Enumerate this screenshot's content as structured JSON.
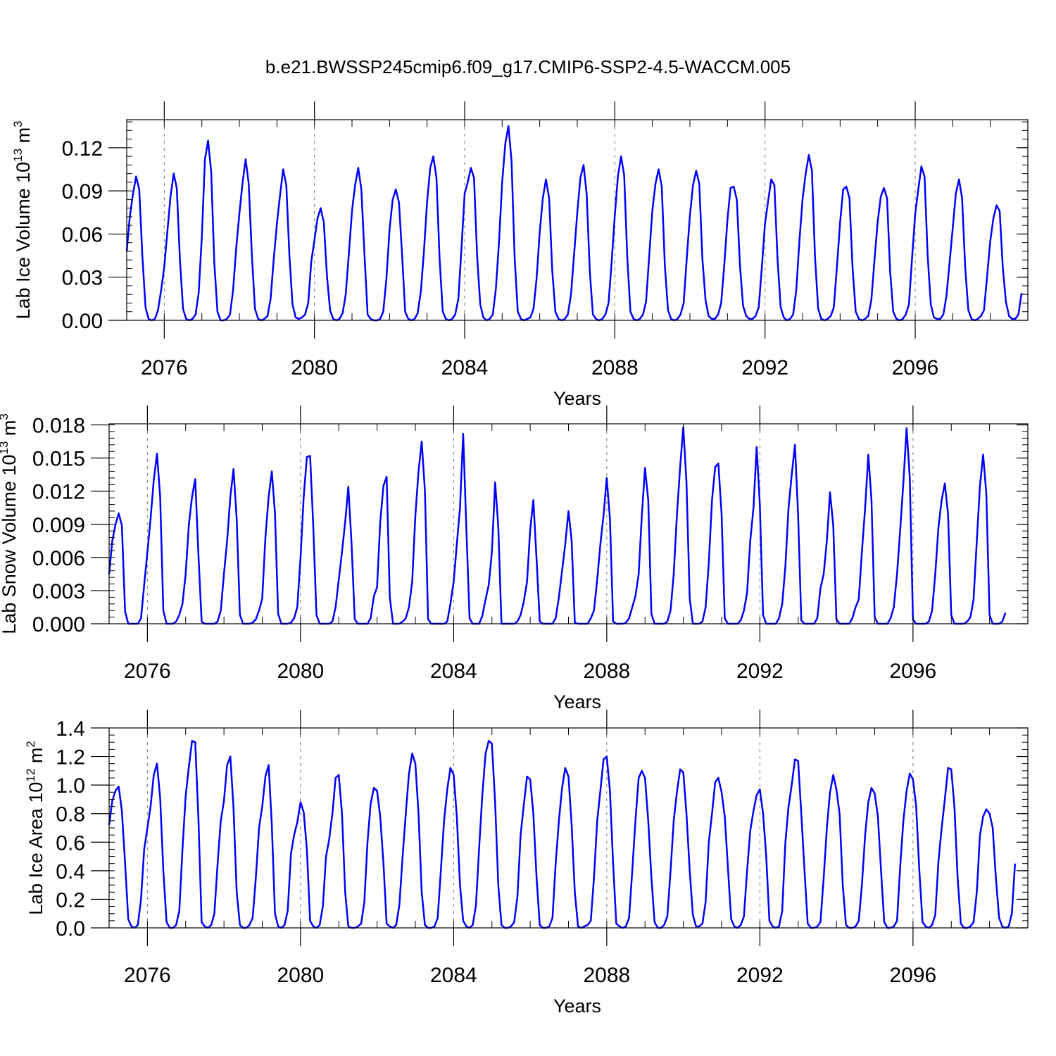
{
  "title": "b.e21.BWSSP245cmip6.f09_g17.CMIP6-SSP2-4.5-WACCM.005",
  "colors": {
    "series": "#0000ff",
    "axis": "#000000",
    "grid": "#777777"
  },
  "chart_data": [
    {
      "type": "line",
      "xlabel": "Years",
      "ylabel": {
        "text": "Lab Ice Volume 10",
        "exp": "13",
        "unit": " m",
        "unit_exp": "3"
      },
      "xlim": [
        2075.0,
        2099.0
      ],
      "ylim": [
        0,
        0.1395
      ],
      "xticks": [
        2076,
        2080,
        2084,
        2088,
        2092,
        2096
      ],
      "xtick_labels": [
        "2076",
        "2080",
        "2084",
        "2088",
        "2092",
        "2096"
      ],
      "yticks": [
        0.0,
        0.03,
        0.06,
        0.09,
        0.12
      ],
      "ytick_labels": [
        "0.00",
        "0.03",
        "0.06",
        "0.09",
        "0.12"
      ],
      "ymin_step": 0.006,
      "grid": "dashed vertical at major x ticks",
      "x_start": 2075.0,
      "x_step": 0.08333,
      "values": [
        0.048,
        0.072,
        0.088,
        0.1,
        0.091,
        0.045,
        0.009,
        0.001,
        0.0,
        0.001,
        0.007,
        0.021,
        0.037,
        0.062,
        0.086,
        0.102,
        0.092,
        0.042,
        0.008,
        0.001,
        0.0,
        0.001,
        0.004,
        0.019,
        0.058,
        0.112,
        0.125,
        0.103,
        0.04,
        0.006,
        0.0,
        0.0,
        0.001,
        0.004,
        0.021,
        0.05,
        0.074,
        0.095,
        0.112,
        0.095,
        0.045,
        0.008,
        0.001,
        0.0,
        0.001,
        0.003,
        0.015,
        0.043,
        0.067,
        0.087,
        0.105,
        0.094,
        0.045,
        0.011,
        0.002,
        0.001,
        0.002,
        0.004,
        0.012,
        0.041,
        0.056,
        0.071,
        0.078,
        0.068,
        0.031,
        0.007,
        0.001,
        0.0,
        0.001,
        0.005,
        0.018,
        0.046,
        0.076,
        0.094,
        0.106,
        0.091,
        0.045,
        0.004,
        0.001,
        0.0,
        0.0,
        0.001,
        0.006,
        0.029,
        0.063,
        0.084,
        0.091,
        0.082,
        0.046,
        0.006,
        0.001,
        0.0,
        0.001,
        0.005,
        0.02,
        0.048,
        0.082,
        0.106,
        0.114,
        0.099,
        0.043,
        0.006,
        0.001,
        0.0,
        0.001,
        0.004,
        0.015,
        0.05,
        0.088,
        0.096,
        0.106,
        0.099,
        0.044,
        0.011,
        0.002,
        0.0,
        0.001,
        0.004,
        0.022,
        0.055,
        0.096,
        0.123,
        0.135,
        0.111,
        0.043,
        0.006,
        0.001,
        0.0,
        0.001,
        0.002,
        0.008,
        0.029,
        0.061,
        0.085,
        0.098,
        0.085,
        0.035,
        0.006,
        0.001,
        0.0,
        0.001,
        0.004,
        0.018,
        0.046,
        0.075,
        0.099,
        0.108,
        0.088,
        0.034,
        0.004,
        0.001,
        0.0,
        0.001,
        0.004,
        0.012,
        0.041,
        0.073,
        0.1,
        0.114,
        0.101,
        0.043,
        0.006,
        0.001,
        0.0,
        0.001,
        0.004,
        0.013,
        0.045,
        0.076,
        0.095,
        0.105,
        0.093,
        0.038,
        0.007,
        0.001,
        0.0,
        0.001,
        0.004,
        0.012,
        0.043,
        0.073,
        0.094,
        0.104,
        0.095,
        0.043,
        0.014,
        0.003,
        0.001,
        0.001,
        0.004,
        0.012,
        0.039,
        0.07,
        0.092,
        0.093,
        0.084,
        0.038,
        0.01,
        0.003,
        0.001,
        0.001,
        0.003,
        0.009,
        0.037,
        0.067,
        0.083,
        0.098,
        0.094,
        0.043,
        0.009,
        0.002,
        0.0,
        0.001,
        0.004,
        0.021,
        0.055,
        0.084,
        0.102,
        0.115,
        0.104,
        0.044,
        0.008,
        0.001,
        0.0,
        0.001,
        0.003,
        0.009,
        0.037,
        0.068,
        0.091,
        0.093,
        0.085,
        0.036,
        0.006,
        0.001,
        0.0,
        0.001,
        0.003,
        0.014,
        0.042,
        0.068,
        0.086,
        0.092,
        0.085,
        0.034,
        0.006,
        0.001,
        0.0,
        0.001,
        0.004,
        0.011,
        0.043,
        0.074,
        0.091,
        0.107,
        0.1,
        0.045,
        0.011,
        0.002,
        0.001,
        0.001,
        0.004,
        0.017,
        0.04,
        0.064,
        0.088,
        0.098,
        0.085,
        0.036,
        0.007,
        0.001,
        0.0,
        0.001,
        0.003,
        0.007,
        0.031,
        0.055,
        0.071,
        0.08,
        0.076,
        0.037,
        0.013,
        0.003,
        0.001,
        0.001,
        0.004,
        0.019
      ]
    },
    {
      "type": "line",
      "xlabel": "Years",
      "ylabel": {
        "text": "Lab Snow Volume 10",
        "exp": "13",
        "unit": " m",
        "unit_exp": "3"
      },
      "xlim": [
        2075.0,
        2099.0
      ],
      "ylim": [
        0,
        0.0181
      ],
      "xticks": [
        2076,
        2080,
        2084,
        2088,
        2092,
        2096
      ],
      "xtick_labels": [
        "2076",
        "2080",
        "2084",
        "2088",
        "2092",
        "2096"
      ],
      "yticks": [
        0.0,
        0.003,
        0.006,
        0.009,
        0.012,
        0.015,
        0.018
      ],
      "ytick_labels": [
        "0.000",
        "0.003",
        "0.006",
        "0.009",
        "0.012",
        "0.015",
        "0.018"
      ],
      "ymin_step": 0.0006,
      "grid": "dashed vertical at major x ticks",
      "x_start": 2075.0,
      "x_step": 0.08333,
      "values": [
        0.0045,
        0.0075,
        0.009,
        0.01,
        0.0089,
        0.0011,
        0.0,
        0.0,
        0.0,
        0.0,
        0.0005,
        0.0035,
        0.0065,
        0.0095,
        0.013,
        0.0154,
        0.0115,
        0.0012,
        0.0,
        0.0,
        0.0,
        0.0002,
        0.0008,
        0.0018,
        0.0045,
        0.009,
        0.0115,
        0.0131,
        0.0062,
        0.0002,
        0.0,
        0.0,
        0.0,
        0.0,
        0.0002,
        0.0012,
        0.0045,
        0.0075,
        0.0115,
        0.014,
        0.0095,
        0.0008,
        0.0,
        0.0,
        0.0,
        0.0001,
        0.0004,
        0.0012,
        0.0023,
        0.0078,
        0.0115,
        0.0138,
        0.01,
        0.0009,
        0.0,
        0.0,
        0.0,
        0.0001,
        0.0005,
        0.0015,
        0.006,
        0.0115,
        0.0151,
        0.0152,
        0.0088,
        0.0008,
        0.0,
        0.0,
        0.0,
        0.0,
        0.0002,
        0.0015,
        0.004,
        0.0065,
        0.0092,
        0.0124,
        0.0072,
        0.0004,
        0.0,
        0.0,
        0.0,
        0.0,
        0.0005,
        0.0025,
        0.0033,
        0.0092,
        0.0125,
        0.0133,
        0.0024,
        0.0,
        0.0,
        0.0,
        0.0002,
        0.0005,
        0.0015,
        0.0038,
        0.0098,
        0.0138,
        0.0165,
        0.012,
        0.0004,
        0.0,
        0.0,
        0.0,
        0.0,
        0.0,
        0.0002,
        0.0018,
        0.0038,
        0.0072,
        0.0105,
        0.0172,
        0.0085,
        0.0005,
        0.0,
        0.0,
        0.0,
        0.0007,
        0.0022,
        0.0035,
        0.0065,
        0.0128,
        0.0088,
        0.0,
        0.0,
        0.0,
        0.0,
        0.0,
        0.0002,
        0.0008,
        0.002,
        0.0038,
        0.0085,
        0.0112,
        0.0058,
        0.0002,
        0.0,
        0.0,
        0.0,
        0.0,
        0.0005,
        0.0024,
        0.0048,
        0.0072,
        0.0102,
        0.0075,
        0.0001,
        0.0,
        0.0,
        0.0,
        0.0,
        0.0005,
        0.0012,
        0.004,
        0.0072,
        0.0098,
        0.0132,
        0.0095,
        0.0002,
        0.0,
        0.0,
        0.0,
        0.0001,
        0.0005,
        0.0015,
        0.0025,
        0.0045,
        0.0098,
        0.0141,
        0.0112,
        0.0009,
        0.0,
        0.0,
        0.0,
        0.0,
        0.0002,
        0.0012,
        0.0045,
        0.0098,
        0.0142,
        0.0178,
        0.0128,
        0.0023,
        0.0,
        0.0,
        0.0,
        0.0002,
        0.0015,
        0.0055,
        0.0112,
        0.0142,
        0.0145,
        0.0099,
        0.0005,
        0.0,
        0.0,
        0.0,
        0.0,
        0.0003,
        0.0012,
        0.0028,
        0.0075,
        0.0105,
        0.016,
        0.0108,
        0.0008,
        0.0,
        0.0,
        0.0,
        0.0,
        0.0005,
        0.0018,
        0.0052,
        0.0105,
        0.0135,
        0.0162,
        0.0098,
        0.0003,
        0.0,
        0.0,
        0.0,
        0.0,
        0.0005,
        0.0032,
        0.0045,
        0.0075,
        0.0119,
        0.0089,
        0.0004,
        0.0,
        0.0,
        0.0,
        0.0,
        0.0005,
        0.0015,
        0.0022,
        0.0065,
        0.0105,
        0.0153,
        0.0112,
        0.0006,
        0.0,
        0.0,
        0.0,
        0.0,
        0.0005,
        0.0015,
        0.0045,
        0.0085,
        0.0128,
        0.0177,
        0.0132,
        0.0004,
        0.0,
        0.0,
        0.0,
        0.0,
        0.0002,
        0.0012,
        0.0045,
        0.0088,
        0.0112,
        0.0127,
        0.0099,
        0.0008,
        0.0,
        0.0,
        0.0,
        0.0,
        0.0002,
        0.0006,
        0.0022,
        0.0075,
        0.0125,
        0.0153,
        0.0118,
        0.0008,
        0.0,
        0.0,
        0.0,
        0.0002,
        0.001
      ]
    },
    {
      "type": "line",
      "xlabel": "Years",
      "ylabel": {
        "text": "Lab Ice Area 10",
        "exp": "12",
        "unit": " m",
        "unit_exp": "2"
      },
      "xlim": [
        2075.0,
        2099.0
      ],
      "ylim": [
        0,
        1.4
      ],
      "xticks": [
        2076,
        2080,
        2084,
        2088,
        2092,
        2096
      ],
      "xtick_labels": [
        "2076",
        "2080",
        "2084",
        "2088",
        "2092",
        "2096"
      ],
      "yticks": [
        0.0,
        0.2,
        0.4,
        0.6,
        0.8,
        1.0,
        1.2,
        1.4
      ],
      "ytick_labels": [
        "0.0",
        "0.2",
        "0.4",
        "0.6",
        "0.8",
        "1.0",
        "1.2",
        "1.4"
      ],
      "ymin_step": 0.05,
      "grid": "dashed vertical at major x ticks",
      "x_start": 2075.0,
      "x_step": 0.08333,
      "values": [
        0.72,
        0.89,
        0.96,
        0.99,
        0.82,
        0.45,
        0.06,
        0.01,
        0.0,
        0.02,
        0.2,
        0.55,
        0.7,
        0.85,
        1.07,
        1.15,
        0.91,
        0.4,
        0.04,
        0.0,
        0.0,
        0.02,
        0.12,
        0.55,
        0.92,
        1.13,
        1.31,
        1.3,
        0.76,
        0.04,
        0.01,
        0.0,
        0.02,
        0.1,
        0.45,
        0.75,
        0.89,
        1.14,
        1.2,
        0.84,
        0.25,
        0.02,
        0.0,
        0.0,
        0.02,
        0.07,
        0.35,
        0.7,
        0.85,
        1.06,
        1.14,
        0.72,
        0.1,
        0.01,
        0.0,
        0.02,
        0.12,
        0.52,
        0.65,
        0.74,
        0.88,
        0.81,
        0.55,
        0.05,
        0.01,
        0.0,
        0.02,
        0.15,
        0.5,
        0.62,
        0.8,
        1.05,
        1.07,
        0.8,
        0.25,
        0.01,
        0.0,
        0.0,
        0.01,
        0.03,
        0.18,
        0.6,
        0.87,
        0.98,
        0.96,
        0.78,
        0.45,
        0.03,
        0.01,
        0.0,
        0.02,
        0.16,
        0.5,
        0.8,
        1.08,
        1.22,
        1.15,
        0.8,
        0.25,
        0.02,
        0.0,
        0.0,
        0.01,
        0.07,
        0.4,
        0.75,
        0.97,
        1.12,
        1.07,
        0.78,
        0.3,
        0.05,
        0.01,
        0.0,
        0.02,
        0.16,
        0.56,
        0.93,
        1.22,
        1.31,
        1.29,
        0.88,
        0.3,
        0.02,
        0.0,
        0.0,
        0.01,
        0.04,
        0.22,
        0.65,
        0.86,
        1.06,
        1.04,
        0.8,
        0.35,
        0.02,
        0.0,
        0.0,
        0.01,
        0.07,
        0.45,
        0.75,
        0.98,
        1.12,
        1.06,
        0.72,
        0.25,
        0.01,
        0.0,
        0.01,
        0.02,
        0.05,
        0.35,
        0.75,
        0.96,
        1.18,
        1.2,
        0.96,
        0.45,
        0.03,
        0.01,
        0.0,
        0.01,
        0.07,
        0.4,
        0.75,
        1.05,
        1.1,
        1.05,
        0.75,
        0.35,
        0.04,
        0.0,
        0.0,
        0.02,
        0.08,
        0.4,
        0.75,
        0.95,
        1.11,
        1.09,
        0.8,
        0.4,
        0.09,
        0.01,
        0.01,
        0.03,
        0.18,
        0.6,
        0.8,
        1.02,
        1.05,
        0.95,
        0.78,
        0.42,
        0.06,
        0.01,
        0.0,
        0.02,
        0.08,
        0.4,
        0.68,
        0.82,
        0.93,
        0.97,
        0.8,
        0.5,
        0.05,
        0.01,
        0.0,
        0.01,
        0.12,
        0.6,
        0.85,
        1.0,
        1.18,
        1.17,
        0.8,
        0.4,
        0.03,
        0.0,
        0.0,
        0.01,
        0.04,
        0.35,
        0.7,
        0.95,
        1.07,
        0.97,
        0.8,
        0.3,
        0.02,
        0.0,
        0.0,
        0.01,
        0.05,
        0.3,
        0.65,
        0.88,
        0.98,
        0.94,
        0.78,
        0.4,
        0.04,
        0.0,
        0.0,
        0.01,
        0.05,
        0.43,
        0.75,
        0.96,
        1.08,
        1.04,
        0.85,
        0.4,
        0.04,
        0.01,
        0.0,
        0.02,
        0.09,
        0.47,
        0.7,
        0.9,
        1.12,
        1.11,
        0.85,
        0.35,
        0.03,
        0.0,
        0.0,
        0.01,
        0.04,
        0.25,
        0.65,
        0.78,
        0.83,
        0.8,
        0.7,
        0.35,
        0.07,
        0.01,
        0.0,
        0.01,
        0.1,
        0.45
      ]
    }
  ]
}
